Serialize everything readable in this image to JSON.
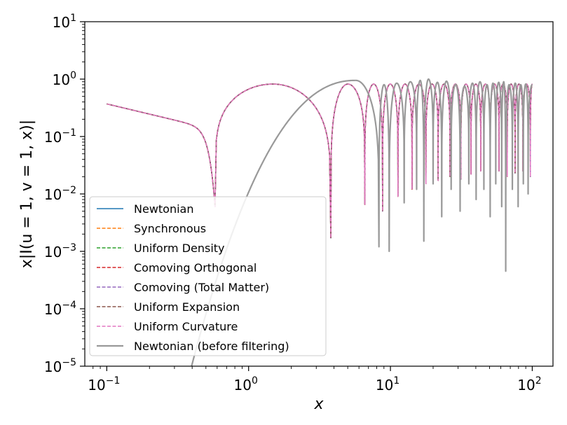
{
  "chart_data": {
    "type": "line",
    "title": "",
    "xlabel": "x",
    "ylabel": "x|I(u = 1, v = 1, x)|",
    "xscale": "log",
    "yscale": "log",
    "xlim": [
      0.07,
      140
    ],
    "ylim": [
      1e-05,
      10
    ],
    "x_ticks": [
      {
        "value": 0.1,
        "base": "10",
        "exp": "−1"
      },
      {
        "value": 1,
        "base": "10",
        "exp": "0"
      },
      {
        "value": 10,
        "base": "10",
        "exp": "1"
      },
      {
        "value": 100,
        "base": "10",
        "exp": "2"
      }
    ],
    "y_ticks": [
      {
        "value": 1e-05,
        "base": "10",
        "exp": "−5"
      },
      {
        "value": 0.0001,
        "base": "10",
        "exp": "−4"
      },
      {
        "value": 0.001,
        "base": "10",
        "exp": "−3"
      },
      {
        "value": 0.01,
        "base": "10",
        "exp": "−2"
      },
      {
        "value": 0.1,
        "base": "10",
        "exp": "−1"
      },
      {
        "value": 1,
        "base": "10",
        "exp": "0"
      },
      {
        "value": 10,
        "base": "10",
        "exp": "1"
      }
    ],
    "x_range": [
      0.1,
      100
    ],
    "series": [
      {
        "name": "Newtonian",
        "color": "#1f77b4",
        "style": "solid",
        "curve": "filtered"
      },
      {
        "name": "Synchronous",
        "color": "#ff7f0e",
        "style": "dashed",
        "curve": "filtered"
      },
      {
        "name": "Uniform Density",
        "color": "#2ca02c",
        "style": "dashed",
        "curve": "filtered"
      },
      {
        "name": "Comoving Orthogonal",
        "color": "#d62728",
        "style": "dashed",
        "curve": "filtered"
      },
      {
        "name": "Comoving (Total Matter)",
        "color": "#9467bd",
        "style": "dashed",
        "curve": "filtered"
      },
      {
        "name": "Uniform Expansion",
        "color": "#8c564b",
        "style": "dashed",
        "curve": "filtered"
      },
      {
        "name": "Uniform Curvature",
        "color": "#e377c2",
        "style": "dashed",
        "curve": "filtered"
      },
      {
        "name": "Newtonian (before filtering)",
        "color": "#999999",
        "style": "solid",
        "curve": "unfiltered"
      }
    ],
    "filtered_curve": {
      "value_at_x_min": 0.37,
      "peak_envelope": 0.82,
      "dips_x": [
        0.58,
        3.8,
        6.6,
        8.8,
        11.3,
        14.2,
        17.8,
        21.7,
        26.3,
        31.4,
        37.0,
        43.3,
        50.5,
        58.3,
        66.6,
        75.6,
        85.8,
        97.0
      ],
      "dips_y": [
        0.006,
        0.0017,
        0.0065,
        0.005,
        0.009,
        0.012,
        0.015,
        0.017,
        0.02,
        0.018,
        0.022,
        0.025,
        0.03,
        0.025,
        0.02,
        0.023,
        0.025,
        0.02
      ]
    },
    "unfiltered_curve": {
      "start_x": 0.35,
      "peak": {
        "x": 5.7,
        "y": 0.95
      },
      "dips_x": [
        8.3,
        9.8,
        12.5,
        15.3,
        17.2,
        20.0,
        23.0,
        26.8,
        31.0,
        35.7,
        40.2,
        45.6,
        50.5,
        55.3,
        60.9,
        65.0,
        72.4,
        79.5,
        86.5,
        93.5
      ],
      "dips_y": [
        0.0012,
        0.001,
        0.007,
        0.012,
        0.0015,
        0.015,
        0.004,
        0.012,
        0.005,
        0.015,
        0.008,
        0.012,
        0.004,
        0.015,
        0.006,
        0.00045,
        0.012,
        0.006,
        0.015,
        0.01
      ],
      "peaks_y": [
        0.9,
        0.8,
        0.85,
        0.9,
        0.95,
        1.0,
        0.88,
        0.92,
        0.8,
        0.75,
        0.85,
        0.9,
        0.8,
        0.85,
        0.88,
        0.9,
        0.8,
        0.85,
        0.8,
        0.82,
        0.8
      ]
    },
    "legend_position": "lower-left",
    "grid": false
  }
}
